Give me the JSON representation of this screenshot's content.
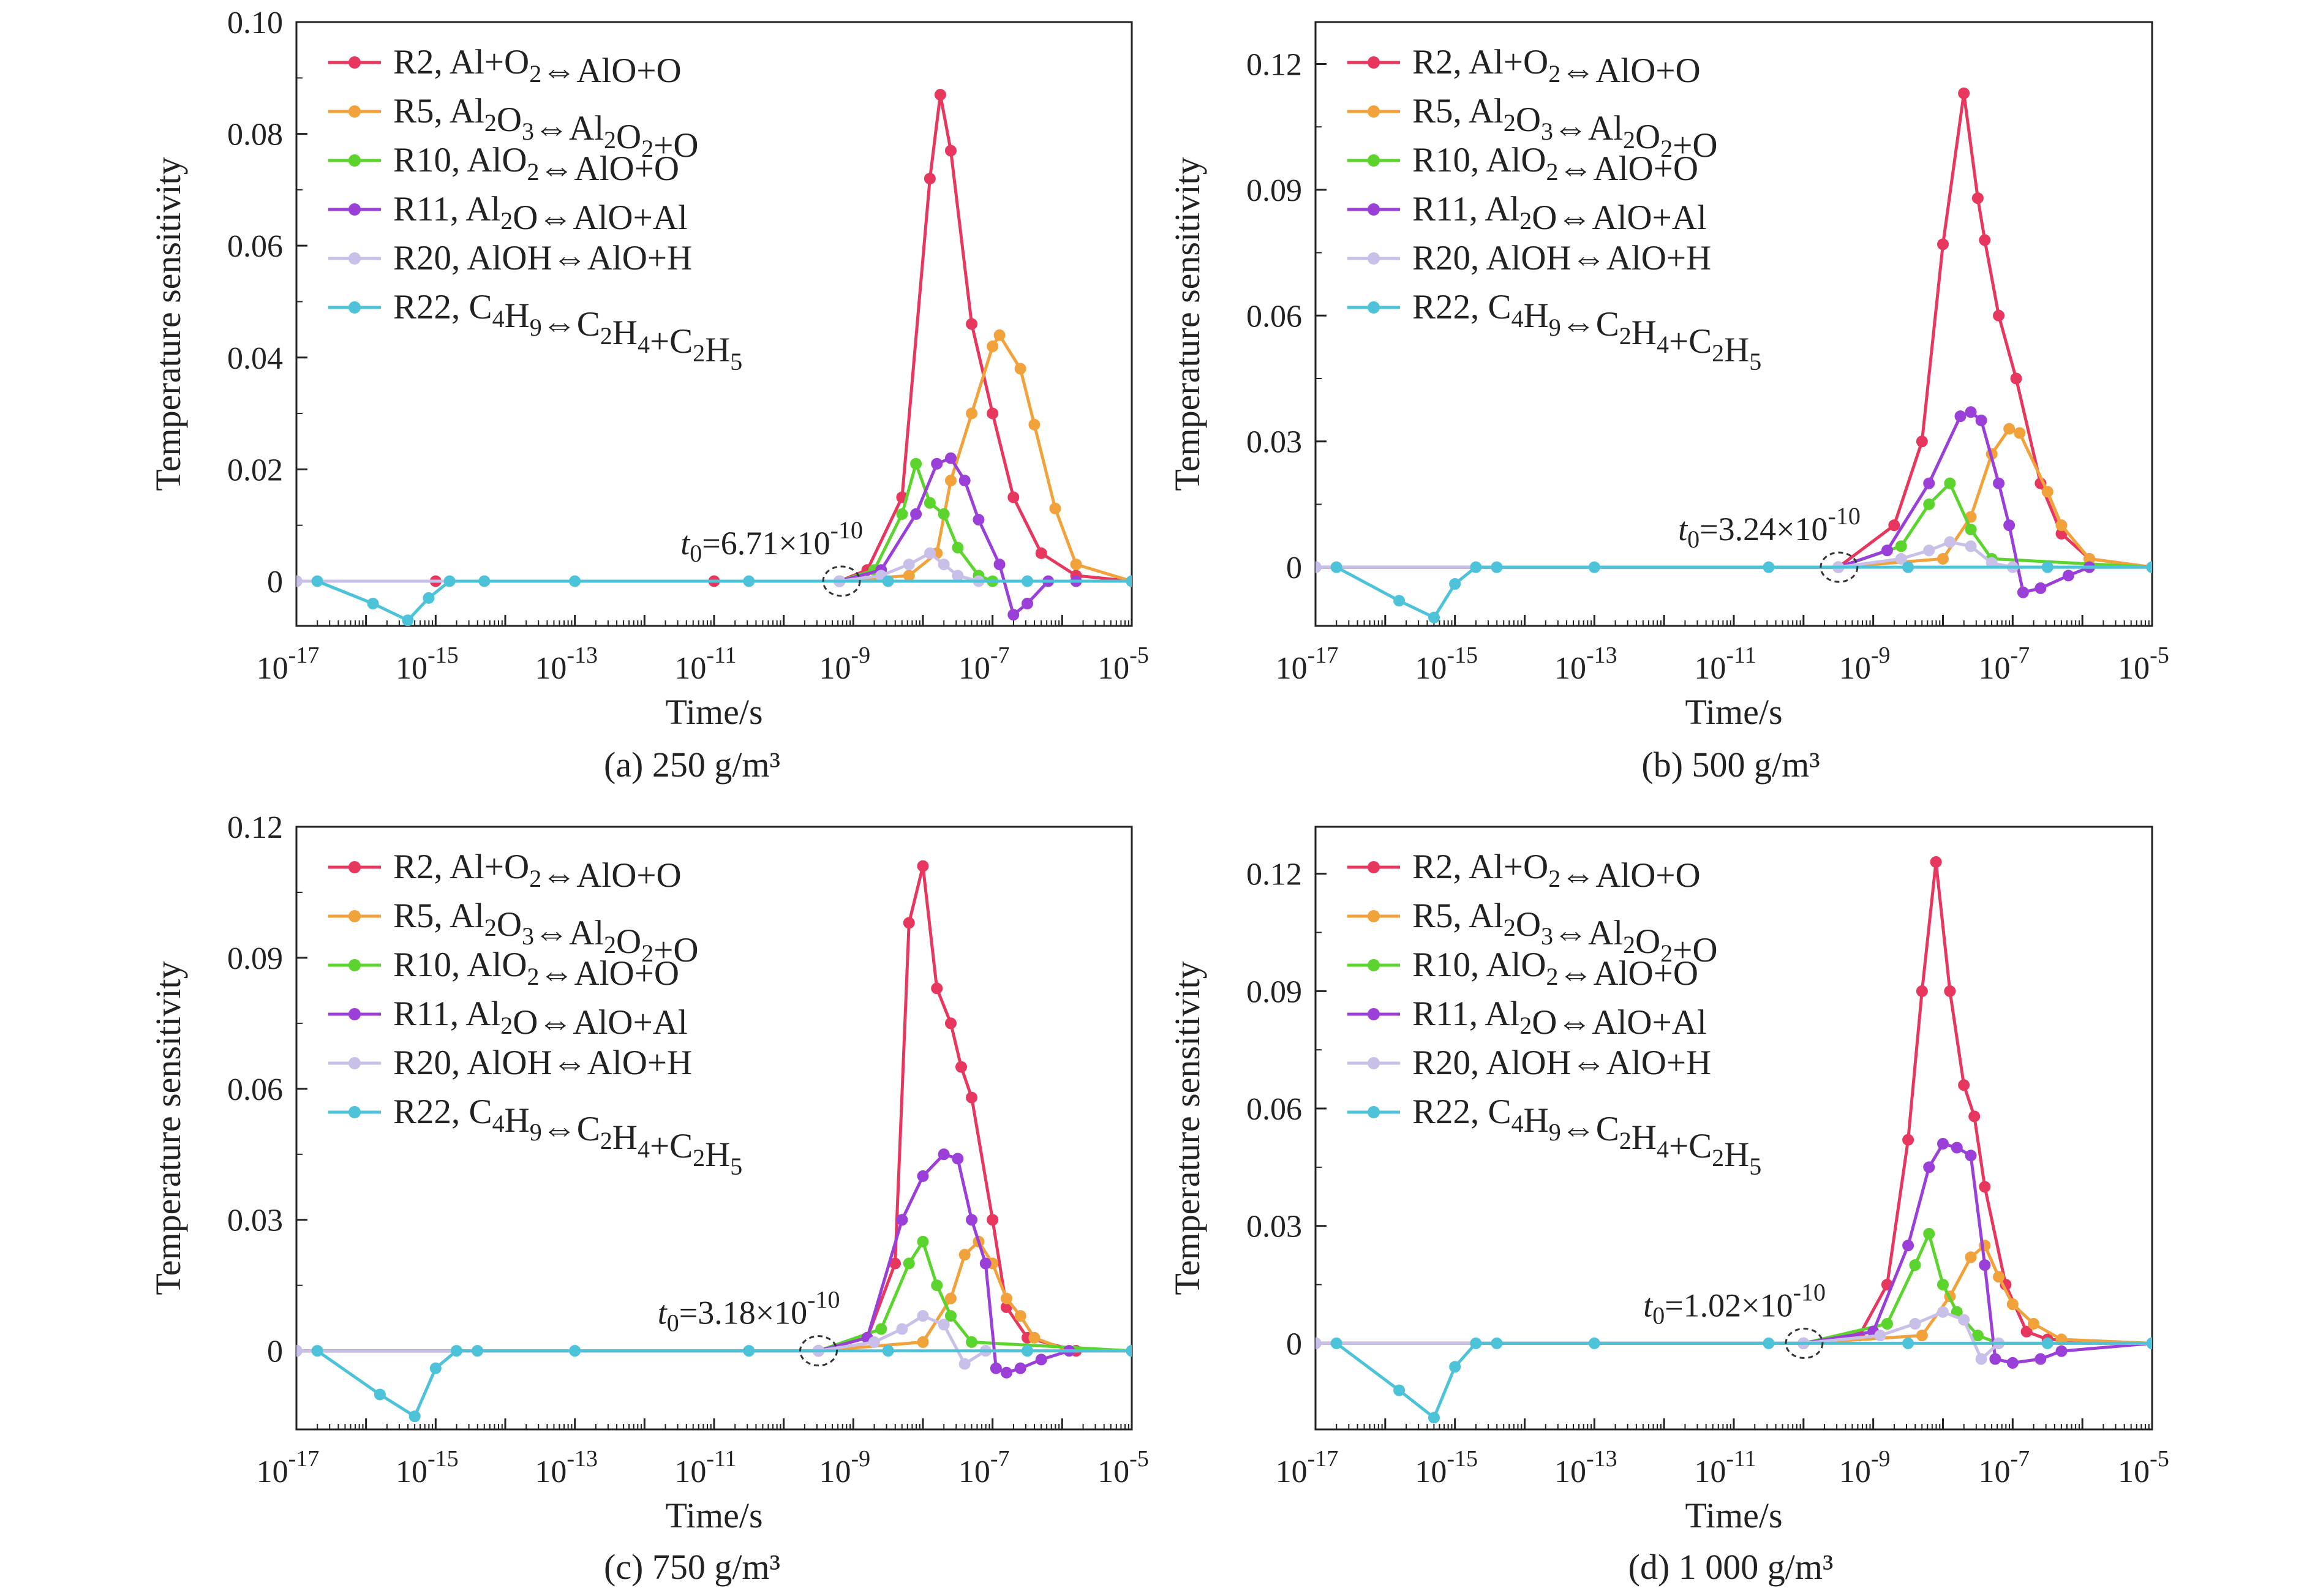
{
  "figure": {
    "x_axis_label": "Time/s",
    "y_axis_label": "Temperature sensitivity",
    "legend": [
      {
        "id": "R2",
        "name": "R2, Al+O2⇔AlO+O",
        "color": "#e8375f"
      },
      {
        "id": "R5",
        "name": "R5, Al2O3⇔Al2O2+O",
        "color": "#f2a23a"
      },
      {
        "id": "R10",
        "name": "R10, AlO2⇔AlO+O",
        "color": "#5cd42e"
      },
      {
        "id": "R11",
        "name": "R11, Al2O⇔AlO+Al",
        "color": "#9a40d8"
      },
      {
        "id": "R20",
        "name": "R20, AlOH⇔AlO+H",
        "color": "#c9c0ea"
      },
      {
        "id": "R22",
        "name": "R22, C4H9⇔C2H4+C2H5",
        "color": "#4cc3d9"
      }
    ]
  },
  "chart_data": [
    {
      "type": "line",
      "caption": "(a) 250 g/m³",
      "annotation": "t0=6.71×10^-10",
      "t0_log": -9.17,
      "x_scale": "log",
      "xlim_log": [
        -17,
        -5
      ],
      "x_ticks_log": [
        -17,
        -15,
        -13,
        -11,
        -9,
        -7,
        -5
      ],
      "ylim": [
        -0.008,
        0.1
      ],
      "y_ticks": [
        0,
        0.02,
        0.04,
        0.06,
        0.08,
        0.1
      ],
      "y_tick_labels": [
        "0",
        "0.02",
        "0.04",
        "0.06",
        "0.08",
        "0.10"
      ],
      "series": [
        {
          "name": "R2",
          "x_log": [
            -17,
            -15,
            -11,
            -9.2,
            -8.8,
            -8.3,
            -7.9,
            -7.75,
            -7.6,
            -7.3,
            -7.0,
            -6.7,
            -6.3,
            -5.8,
            -5
          ],
          "y": [
            0,
            0,
            0,
            0,
            0.002,
            0.015,
            0.072,
            0.087,
            0.077,
            0.046,
            0.03,
            0.015,
            0.005,
            0.001,
            0
          ]
        },
        {
          "name": "R5",
          "x_log": [
            -17,
            -9.2,
            -8.2,
            -7.8,
            -7.6,
            -7.3,
            -7.0,
            -6.9,
            -6.6,
            -6.4,
            -6.1,
            -5.8,
            -5
          ],
          "y": [
            0,
            0,
            0.001,
            0.005,
            0.018,
            0.03,
            0.042,
            0.044,
            0.038,
            0.028,
            0.013,
            0.003,
            0
          ]
        },
        {
          "name": "R10",
          "x_log": [
            -17,
            -9.2,
            -8.7,
            -8.3,
            -8.1,
            -7.9,
            -7.7,
            -7.5,
            -7.2,
            -7.0,
            -5
          ],
          "y": [
            0,
            0,
            0.002,
            0.012,
            0.021,
            0.014,
            0.012,
            0.006,
            0.001,
            0,
            0
          ]
        },
        {
          "name": "R11",
          "x_log": [
            -17,
            -9.2,
            -8.6,
            -8.1,
            -7.8,
            -7.6,
            -7.4,
            -7.2,
            -6.9,
            -6.7,
            -6.5,
            -6.2,
            -5.8,
            -5
          ],
          "y": [
            0,
            0,
            0.002,
            0.012,
            0.021,
            0.022,
            0.018,
            0.011,
            0.003,
            -0.006,
            -0.004,
            0,
            0,
            0
          ]
        },
        {
          "name": "R20",
          "x_log": [
            -17,
            -9.2,
            -8.6,
            -8.2,
            -7.9,
            -7.7,
            -7.5,
            -7.2,
            -5
          ],
          "y": [
            0,
            0,
            0.001,
            0.003,
            0.005,
            0.003,
            0.001,
            0,
            0
          ]
        },
        {
          "name": "R22",
          "x_log": [
            -16.7,
            -15.9,
            -15.4,
            -15.1,
            -14.8,
            -14.3,
            -13,
            -10.5,
            -8.5,
            -6.5,
            -5
          ],
          "y": [
            0,
            -0.004,
            -0.007,
            -0.003,
            0,
            0,
            0,
            0,
            0,
            0,
            0
          ]
        }
      ]
    },
    {
      "type": "line",
      "caption": "(b) 500 g/m³",
      "annotation": "t0=3.24×10^-10",
      "t0_log": -9.49,
      "x_scale": "log",
      "xlim_log": [
        -17,
        -5
      ],
      "x_ticks_log": [
        -17,
        -15,
        -13,
        -11,
        -9,
        -7,
        -5
      ],
      "ylim": [
        -0.014,
        0.13
      ],
      "y_ticks": [
        0,
        0.03,
        0.06,
        0.09,
        0.12
      ],
      "y_tick_labels": [
        "0",
        "0.03",
        "0.06",
        "0.09",
        "0.12"
      ],
      "series": [
        {
          "name": "R2",
          "x_log": [
            -17,
            -9.5,
            -8.7,
            -8.3,
            -8.0,
            -7.7,
            -7.5,
            -7.4,
            -7.2,
            -6.95,
            -6.6,
            -6.3,
            -5.9,
            -5
          ],
          "y": [
            0,
            0,
            0.01,
            0.03,
            0.077,
            0.113,
            0.088,
            0.078,
            0.06,
            0.045,
            0.02,
            0.008,
            0.002,
            0
          ]
        },
        {
          "name": "R5",
          "x_log": [
            -17,
            -9.5,
            -8.0,
            -7.6,
            -7.3,
            -7.05,
            -6.9,
            -6.5,
            -6.3,
            -5.9,
            -5
          ],
          "y": [
            0,
            0,
            0.002,
            0.012,
            0.027,
            0.033,
            0.032,
            0.018,
            0.01,
            0.002,
            0
          ]
        },
        {
          "name": "R10",
          "x_log": [
            -17,
            -9.5,
            -8.6,
            -8.2,
            -7.9,
            -7.6,
            -7.3,
            -5
          ],
          "y": [
            0,
            0,
            0.005,
            0.015,
            0.02,
            0.009,
            0.002,
            0
          ]
        },
        {
          "name": "R11",
          "x_log": [
            -17,
            -9.5,
            -8.8,
            -8.2,
            -7.75,
            -7.6,
            -7.45,
            -7.2,
            -7.05,
            -6.85,
            -6.6,
            -6.2,
            -5.9,
            -5
          ],
          "y": [
            0,
            0,
            0.004,
            0.02,
            0.036,
            0.037,
            0.035,
            0.02,
            0.01,
            -0.006,
            -0.005,
            -0.002,
            0,
            0
          ]
        },
        {
          "name": "R20",
          "x_log": [
            -17,
            -9.5,
            -8.6,
            -8.2,
            -7.9,
            -7.6,
            -7.3,
            -7.0,
            -5
          ],
          "y": [
            0,
            0,
            0.002,
            0.004,
            0.006,
            0.005,
            0.001,
            0,
            0
          ]
        },
        {
          "name": "R22",
          "x_log": [
            -16.7,
            -15.8,
            -15.3,
            -15.0,
            -14.7,
            -14.4,
            -13,
            -10.5,
            -8.5,
            -6.5,
            -5
          ],
          "y": [
            0,
            -0.008,
            -0.012,
            -0.004,
            0,
            0,
            0,
            0,
            0,
            0,
            0
          ]
        }
      ]
    },
    {
      "type": "line",
      "caption": "(c) 750 g/m³",
      "annotation": "t0=3.18×10^-10",
      "t0_log": -9.5,
      "x_scale": "log",
      "xlim_log": [
        -17,
        -5
      ],
      "x_ticks_log": [
        -17,
        -15,
        -13,
        -11,
        -9,
        -7,
        -5
      ],
      "ylim": [
        -0.018,
        0.12
      ],
      "y_ticks": [
        0,
        0.03,
        0.06,
        0.09,
        0.12
      ],
      "y_tick_labels": [
        "0",
        "0.03",
        "0.06",
        "0.09",
        "0.12"
      ],
      "series": [
        {
          "name": "R2",
          "x_log": [
            -17,
            -9.5,
            -8.8,
            -8.4,
            -8.2,
            -8.0,
            -7.8,
            -7.6,
            -7.45,
            -7.3,
            -7.0,
            -6.8,
            -6.5,
            -5.8,
            -5
          ],
          "y": [
            0,
            0,
            0.003,
            0.02,
            0.098,
            0.111,
            0.083,
            0.075,
            0.065,
            0.058,
            0.03,
            0.01,
            0.003,
            0,
            0
          ]
        },
        {
          "name": "R5",
          "x_log": [
            -17,
            -9.5,
            -8.0,
            -7.6,
            -7.4,
            -7.2,
            -7.0,
            -6.8,
            -6.6,
            -6.4,
            -5.9,
            -5
          ],
          "y": [
            0,
            0,
            0.002,
            0.012,
            0.022,
            0.025,
            0.02,
            0.012,
            0.008,
            0.003,
            0,
            0
          ]
        },
        {
          "name": "R10",
          "x_log": [
            -17,
            -9.5,
            -8.6,
            -8.2,
            -8.0,
            -7.8,
            -7.6,
            -7.3,
            -5
          ],
          "y": [
            0,
            0,
            0.005,
            0.02,
            0.025,
            0.015,
            0.008,
            0.002,
            0
          ]
        },
        {
          "name": "R11",
          "x_log": [
            -17,
            -9.5,
            -8.8,
            -8.3,
            -8.0,
            -7.7,
            -7.5,
            -7.3,
            -7.1,
            -6.95,
            -6.8,
            -6.6,
            -6.3,
            -5.9,
            -5
          ],
          "y": [
            0,
            0,
            0.003,
            0.03,
            0.04,
            0.045,
            0.044,
            0.03,
            0.02,
            -0.004,
            -0.005,
            -0.004,
            -0.002,
            0,
            0
          ]
        },
        {
          "name": "R20",
          "x_log": [
            -17,
            -9.5,
            -8.7,
            -8.3,
            -8.0,
            -7.7,
            -7.4,
            -7.1,
            -5
          ],
          "y": [
            0,
            0,
            0.002,
            0.005,
            0.008,
            0.006,
            -0.003,
            0,
            0
          ]
        },
        {
          "name": "R22",
          "x_log": [
            -16.7,
            -15.8,
            -15.3,
            -15.0,
            -14.7,
            -14.4,
            -13,
            -10.5,
            -8.5,
            -6.5,
            -5
          ],
          "y": [
            0,
            -0.01,
            -0.015,
            -0.004,
            0,
            0,
            0,
            0,
            0,
            0,
            0
          ]
        }
      ]
    },
    {
      "type": "line",
      "caption": "(d) 1 000 g/m³",
      "annotation": "t0=1.02×10^-10",
      "t0_log": -9.99,
      "x_scale": "log",
      "xlim_log": [
        -17,
        -5
      ],
      "x_ticks_log": [
        -17,
        -15,
        -13,
        -11,
        -9,
        -7,
        -5
      ],
      "ylim": [
        -0.022,
        0.132
      ],
      "y_ticks": [
        0,
        0.03,
        0.06,
        0.09,
        0.12
      ],
      "y_tick_labels": [
        "0",
        "0.03",
        "0.06",
        "0.09",
        "0.12"
      ],
      "series": [
        {
          "name": "R2",
          "x_log": [
            -17,
            -10,
            -9.2,
            -8.8,
            -8.5,
            -8.3,
            -8.1,
            -7.9,
            -7.7,
            -7.55,
            -7.4,
            -7.1,
            -6.8,
            -6.5,
            -5
          ],
          "y": [
            0,
            0,
            0.002,
            0.015,
            0.052,
            0.09,
            0.123,
            0.09,
            0.066,
            0.058,
            0.04,
            0.015,
            0.003,
            0.001,
            0
          ]
        },
        {
          "name": "R5",
          "x_log": [
            -17,
            -10,
            -8.3,
            -7.9,
            -7.6,
            -7.4,
            -7.2,
            -7.0,
            -6.7,
            -6.3,
            -5
          ],
          "y": [
            0,
            0,
            0.002,
            0.012,
            0.022,
            0.025,
            0.017,
            0.01,
            0.005,
            0.001,
            0
          ]
        },
        {
          "name": "R10",
          "x_log": [
            -17,
            -10,
            -8.8,
            -8.4,
            -8.2,
            -8.0,
            -7.8,
            -7.5,
            -7.2,
            -5
          ],
          "y": [
            0,
            0,
            0.005,
            0.02,
            0.028,
            0.015,
            0.008,
            0.002,
            0,
            0
          ]
        },
        {
          "name": "R11",
          "x_log": [
            -17,
            -10,
            -9.0,
            -8.5,
            -8.2,
            -8.0,
            -7.8,
            -7.6,
            -7.4,
            -7.25,
            -7.0,
            -6.6,
            -6.3,
            -5
          ],
          "y": [
            0,
            0,
            0.003,
            0.025,
            0.045,
            0.051,
            0.05,
            0.048,
            0.02,
            -0.004,
            -0.005,
            -0.004,
            -0.002,
            0
          ]
        },
        {
          "name": "R20",
          "x_log": [
            -17,
            -10,
            -8.9,
            -8.4,
            -8.0,
            -7.7,
            -7.45,
            -7.2,
            -5
          ],
          "y": [
            0,
            0,
            0.002,
            0.005,
            0.008,
            0.006,
            -0.004,
            0,
            0
          ]
        },
        {
          "name": "R22",
          "x_log": [
            -16.7,
            -15.8,
            -15.3,
            -15.0,
            -14.7,
            -14.4,
            -13,
            -10.5,
            -8.5,
            -6.5,
            -5
          ],
          "y": [
            0,
            -0.012,
            -0.019,
            -0.006,
            0,
            0,
            0,
            0,
            0,
            0,
            0
          ]
        }
      ]
    }
  ]
}
